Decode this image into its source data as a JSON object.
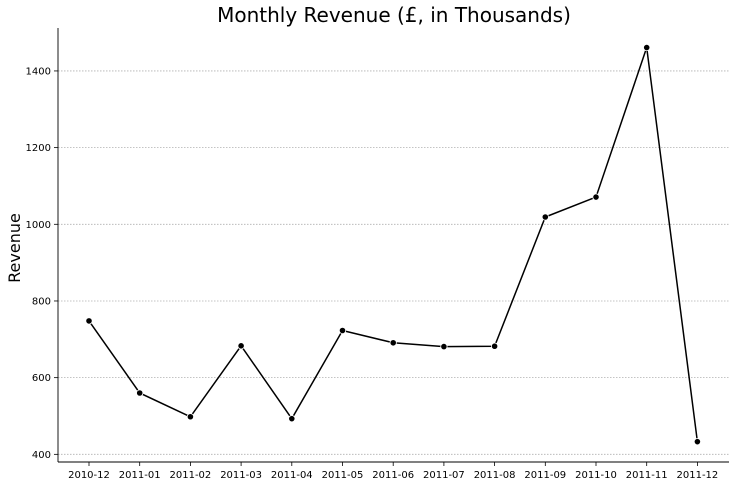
{
  "chart_data": {
    "type": "line",
    "title": "Monthly Revenue (£, in Thousands)",
    "xlabel": "",
    "ylabel": "Revenue",
    "x": [
      "2010-12",
      "2011-01",
      "2011-02",
      "2011-03",
      "2011-04",
      "2011-05",
      "2011-06",
      "2011-07",
      "2011-08",
      "2011-09",
      "2011-10",
      "2011-11",
      "2011-12"
    ],
    "series": [
      {
        "values": [
          748,
          560,
          498,
          683,
          493,
          723,
          691,
          681,
          682,
          1019,
          1071,
          1461,
          433
        ]
      }
    ],
    "ylim": [
      380,
      1512
    ],
    "yticks": [
      400,
      600,
      800,
      1000,
      1200,
      1400
    ],
    "grid": "y-dotted",
    "colors": {
      "line": "#000000",
      "grid": "#b0b0b0"
    },
    "marker": "circle"
  }
}
